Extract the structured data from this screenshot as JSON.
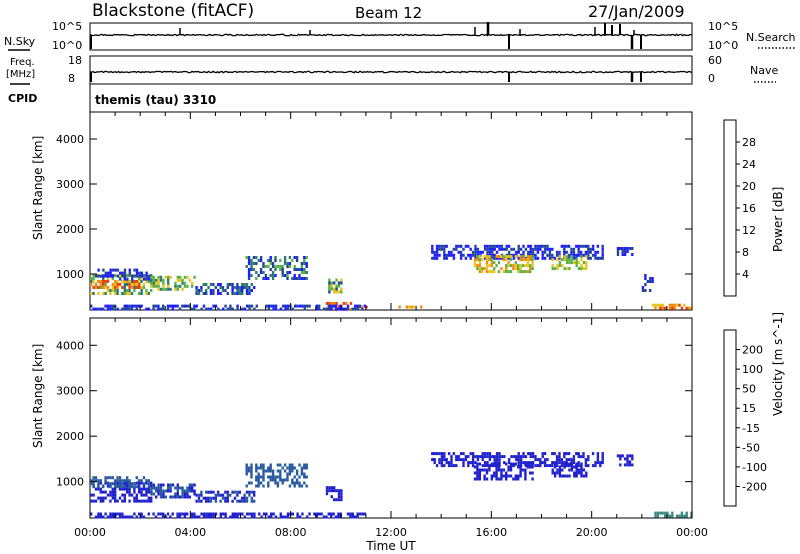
{
  "header": {
    "station": "Blackstone (fitACF)",
    "beam": "Beam 12",
    "date": "27/Jan/2009"
  },
  "top_panels": {
    "nsky_label": "N.Sky",
    "nsearch_label": "N.Search",
    "nsky_ticks": [
      "10^5",
      "10^0"
    ],
    "nsearch_ticks": [
      "10^5",
      "10^0"
    ],
    "freq_label": "Freq.",
    "freq_unit": "[MHz]",
    "freq_ticks": [
      "18",
      "8"
    ],
    "nave_label": "Nave",
    "nave_ticks": [
      "60",
      "0"
    ],
    "cpid_label": "CPID",
    "cpid_value": "themis (tau) 3310"
  },
  "chart_data": [
    {
      "type": "heatmap",
      "name": "power",
      "ylabel": "Slant Range [km]",
      "ylim": [
        200,
        4600
      ],
      "yticks": [
        "1000",
        "2000",
        "3000",
        "4000"
      ],
      "xlim": [
        0,
        24
      ],
      "xticks": [
        "00:00",
        "04:00",
        "08:00",
        "12:00",
        "16:00",
        "20:00",
        "00:00"
      ],
      "colorbar": {
        "label": "Power [dB]",
        "ticks": [
          "4",
          "8",
          "12",
          "16",
          "20",
          "24",
          "28"
        ],
        "colors": [
          "#1c1cff",
          "#22449a",
          "#2f7a6e",
          "#58b24a",
          "#e6c51d",
          "#f58a10",
          "#e84010",
          "#e01010"
        ]
      },
      "regions": [
        {
          "t": [
            0.0,
            2.4
          ],
          "r": [
            560,
            1000
          ],
          "c": [
            2,
            3,
            4
          ]
        },
        {
          "t": [
            0.0,
            2.0
          ],
          "r": [
            730,
            870
          ],
          "c": [
            5,
            6
          ]
        },
        {
          "t": [
            0.2,
            2.4
          ],
          "r": [
            880,
            1120
          ],
          "c": [
            0,
            1
          ]
        },
        {
          "t": [
            2.4,
            4.2
          ],
          "r": [
            680,
            960
          ],
          "c": [
            3,
            4,
            2
          ]
        },
        {
          "t": [
            4.2,
            6.5
          ],
          "r": [
            560,
            800
          ],
          "c": [
            0,
            1,
            2
          ]
        },
        {
          "t": [
            6.2,
            8.6
          ],
          "r": [
            900,
            1400
          ],
          "c": [
            0,
            1,
            2,
            3
          ]
        },
        {
          "t": [
            9.4,
            10.0
          ],
          "r": [
            620,
            900
          ],
          "c": [
            1,
            3,
            4
          ]
        },
        {
          "t": [
            9.4,
            10.4
          ],
          "r": [
            240,
            380
          ],
          "c": [
            5,
            6
          ]
        },
        {
          "t": [
            10.4,
            11.0
          ],
          "r": [
            240,
            300
          ],
          "c": [
            5,
            6
          ]
        },
        {
          "t": [
            12.2,
            13.2
          ],
          "r": [
            240,
            300
          ],
          "c": [
            4,
            5
          ]
        },
        {
          "t": [
            0.0,
            11.0
          ],
          "r": [
            220,
            320
          ],
          "c": [
            0,
            1
          ]
        },
        {
          "t": [
            13.6,
            20.4
          ],
          "r": [
            1380,
            1650
          ],
          "c": [
            0,
            1
          ]
        },
        {
          "t": [
            15.3,
            17.6
          ],
          "r": [
            1050,
            1420
          ],
          "c": [
            4,
            5,
            3
          ]
        },
        {
          "t": [
            18.4,
            19.8
          ],
          "r": [
            1150,
            1420
          ],
          "c": [
            4,
            3
          ]
        },
        {
          "t": [
            21.0,
            21.6
          ],
          "r": [
            1400,
            1600
          ],
          "c": [
            0,
            1
          ]
        },
        {
          "t": [
            22.0,
            22.4
          ],
          "r": [
            600,
            1000
          ],
          "c": [
            0,
            1
          ]
        },
        {
          "t": [
            22.4,
            24.0
          ],
          "r": [
            220,
            340
          ],
          "c": [
            5,
            6,
            4
          ]
        }
      ]
    },
    {
      "type": "heatmap",
      "name": "velocity",
      "ylabel": "Slant Range [km]",
      "ylim": [
        200,
        4600
      ],
      "yticks": [
        "1000",
        "2000",
        "3000",
        "4000"
      ],
      "xlim": [
        0,
        24
      ],
      "xticks": [
        "00:00",
        "04:00",
        "08:00",
        "12:00",
        "16:00",
        "20:00",
        "00:00"
      ],
      "xlabel": "Time UT",
      "colorbar": {
        "label": "Velocity [m s^-1]",
        "ticks": [
          "200",
          "100",
          "50",
          "15",
          "-15",
          "-50",
          "-100",
          "-200"
        ],
        "colors": [
          "#2020cc",
          "#2a5aa0",
          "#3c8a7e",
          "#59c84a",
          "#c8c8c8",
          "#f2c020",
          "#f59010",
          "#f06010",
          "#e01010"
        ]
      },
      "regions": [
        {
          "t": [
            0.0,
            2.4
          ],
          "r": [
            560,
            1000
          ],
          "c": [
            0
          ]
        },
        {
          "t": [
            0.0,
            2.4
          ],
          "r": [
            880,
            1120
          ],
          "c": [
            1
          ]
        },
        {
          "t": [
            2.4,
            4.2
          ],
          "r": [
            680,
            960
          ],
          "c": [
            0,
            1
          ]
        },
        {
          "t": [
            4.2,
            6.5
          ],
          "r": [
            560,
            800
          ],
          "c": [
            1,
            0
          ]
        },
        {
          "t": [
            6.2,
            8.6
          ],
          "r": [
            900,
            1400
          ],
          "c": [
            1
          ]
        },
        {
          "t": [
            9.4,
            10.0
          ],
          "r": [
            620,
            900
          ],
          "c": [
            0
          ]
        },
        {
          "t": [
            0.0,
            11.0
          ],
          "r": [
            220,
            320
          ],
          "c": [
            0
          ]
        },
        {
          "t": [
            13.6,
            20.4
          ],
          "r": [
            1380,
            1650
          ],
          "c": [
            0
          ]
        },
        {
          "t": [
            15.3,
            17.6
          ],
          "r": [
            1050,
            1420
          ],
          "c": [
            0
          ]
        },
        {
          "t": [
            18.4,
            19.8
          ],
          "r": [
            1150,
            1420
          ],
          "c": [
            0
          ]
        },
        {
          "t": [
            21.0,
            21.6
          ],
          "r": [
            1400,
            1600
          ],
          "c": [
            0
          ]
        },
        {
          "t": [
            22.4,
            24.0
          ],
          "r": [
            220,
            340
          ],
          "c": [
            2
          ]
        }
      ]
    }
  ]
}
